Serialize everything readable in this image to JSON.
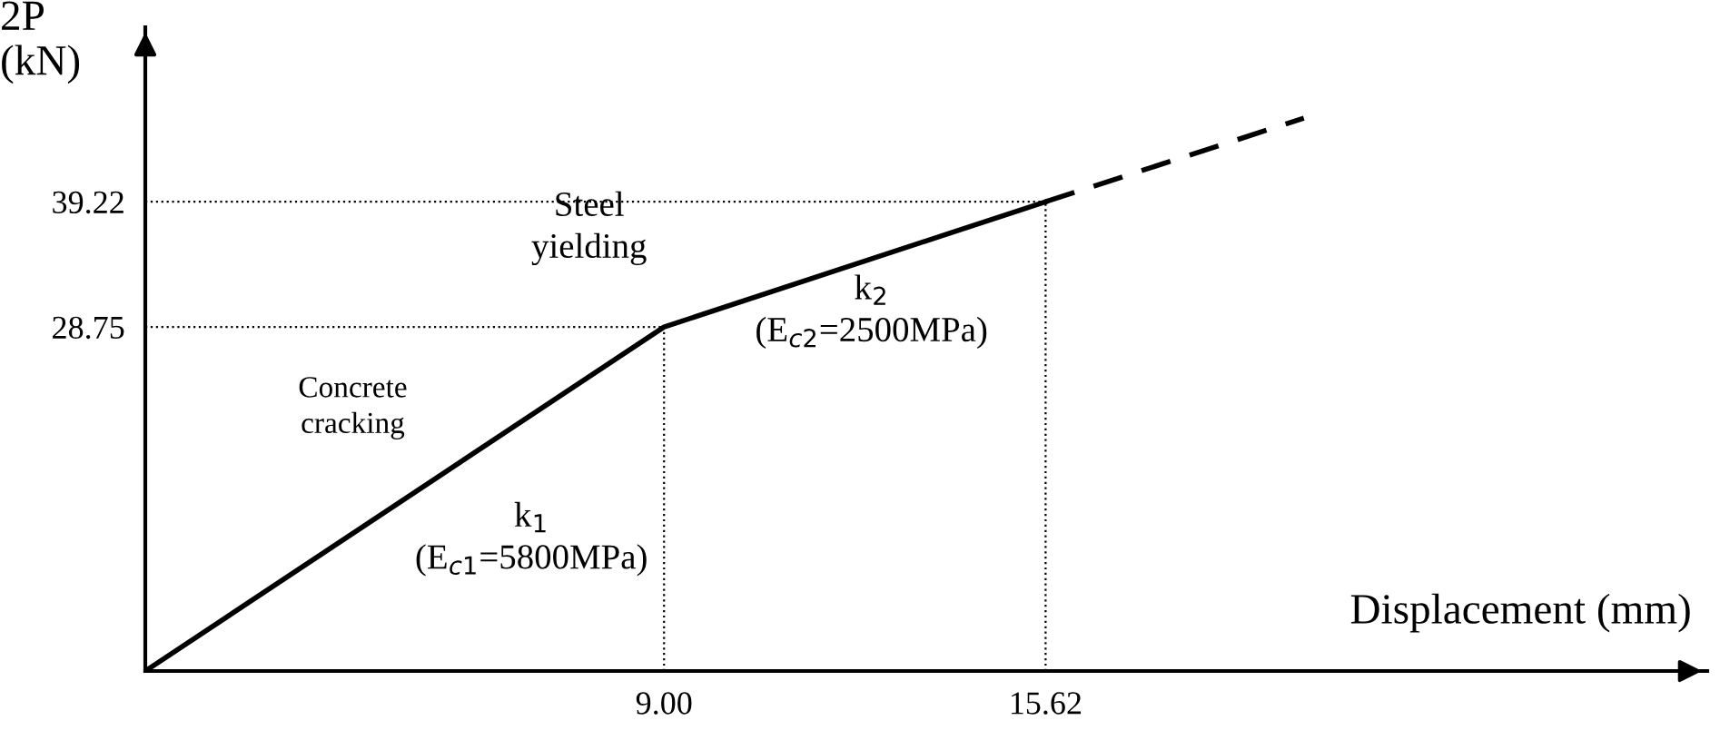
{
  "chart_data": {
    "type": "line",
    "xlabel": "Displacement (mm)",
    "ylabel": "2P\n(kN)",
    "x": [
      0,
      9.0,
      15.62
    ],
    "series": [
      {
        "values": [
          0,
          28.75,
          39.22
        ],
        "color": "#000000",
        "line_style": "solid"
      },
      {
        "x": [
          15.62,
          20.1
        ],
        "values": [
          39.22,
          46.2
        ],
        "color": "#000000",
        "line_style": "dashed"
      }
    ],
    "xlim": [
      0,
      27.1
    ],
    "ylim": [
      0,
      53.8
    ],
    "xticks": [
      {
        "value": 9.0,
        "label": "9.00"
      },
      15.62
    ],
    "yticks": [
      28.75,
      39.22
    ],
    "ref_lines": [
      {
        "axis": "x",
        "value": 9.0,
        "line_style": "dotted"
      },
      {
        "axis": "x",
        "value": 15.62,
        "line_style": "dotted"
      },
      {
        "axis": "y",
        "value": 28.75,
        "line_style": "dotted"
      },
      {
        "axis": "y",
        "value": 39.22,
        "line_style": "dotted"
      }
    ],
    "annotations": [
      "Concrete\ncracking",
      "Steel\nyielding",
      "k$_{1}$\n(E$_{c1}$=5800MPa)",
      "k$_{2}$\n(E$_{c2}$=2500MPa)"
    ],
    "grid": false,
    "legend": false,
    "marker": "none"
  }
}
